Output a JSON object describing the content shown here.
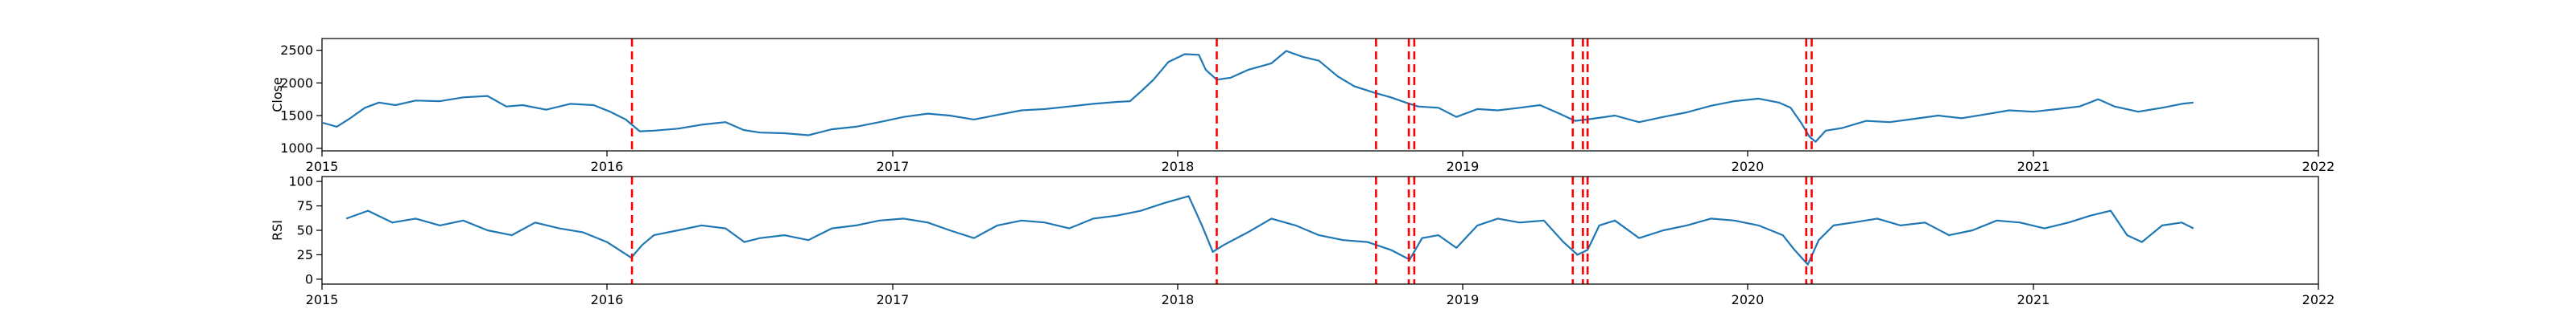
{
  "chart_data": [
    {
      "type": "line",
      "title": "",
      "xlabel": "",
      "ylabel": "Close",
      "xlim": [
        "2015-01-01",
        "2022-01-01"
      ],
      "ylim": [
        960,
        2680
      ],
      "yticks": [
        1000,
        1500,
        2000,
        2500
      ],
      "xticks": [
        "2015",
        "2016",
        "2017",
        "2018",
        "2019",
        "2020",
        "2021",
        "2022"
      ],
      "grid": false,
      "series": [
        {
          "color": "#1f77b4",
          "points": [
            [
              "2015-01-02",
              1390
            ],
            [
              "2015-01-20",
              1330
            ],
            [
              "2015-02-05",
              1450
            ],
            [
              "2015-02-25",
              1620
            ],
            [
              "2015-03-15",
              1700
            ],
            [
              "2015-04-05",
              1660
            ],
            [
              "2015-05-01",
              1730
            ],
            [
              "2015-06-01",
              1720
            ],
            [
              "2015-07-01",
              1780
            ],
            [
              "2015-08-01",
              1800
            ],
            [
              "2015-08-25",
              1640
            ],
            [
              "2015-09-15",
              1660
            ],
            [
              "2015-10-15",
              1590
            ],
            [
              "2015-11-15",
              1680
            ],
            [
              "2015-12-15",
              1660
            ],
            [
              "2016-01-05",
              1560
            ],
            [
              "2016-01-25",
              1440
            ],
            [
              "2016-02-12",
              1260
            ],
            [
              "2016-03-01",
              1270
            ],
            [
              "2016-04-01",
              1300
            ],
            [
              "2016-05-01",
              1360
            ],
            [
              "2016-06-01",
              1400
            ],
            [
              "2016-06-24",
              1280
            ],
            [
              "2016-07-15",
              1240
            ],
            [
              "2016-08-15",
              1230
            ],
            [
              "2016-09-15",
              1200
            ],
            [
              "2016-10-15",
              1290
            ],
            [
              "2016-11-15",
              1330
            ],
            [
              "2016-12-15",
              1400
            ],
            [
              "2017-01-15",
              1480
            ],
            [
              "2017-02-15",
              1530
            ],
            [
              "2017-03-15",
              1500
            ],
            [
              "2017-04-15",
              1440
            ],
            [
              "2017-05-15",
              1510
            ],
            [
              "2017-06-15",
              1580
            ],
            [
              "2017-07-15",
              1600
            ],
            [
              "2017-08-15",
              1640
            ],
            [
              "2017-09-15",
              1680
            ],
            [
              "2017-10-15",
              1710
            ],
            [
              "2017-11-01",
              1720
            ],
            [
              "2017-11-15",
              1870
            ],
            [
              "2017-12-01",
              2050
            ],
            [
              "2017-12-20",
              2320
            ],
            [
              "2018-01-10",
              2440
            ],
            [
              "2018-01-28",
              2430
            ],
            [
              "2018-02-06",
              2200
            ],
            [
              "2018-02-20",
              2050
            ],
            [
              "2018-03-10",
              2080
            ],
            [
              "2018-04-01",
              2200
            ],
            [
              "2018-05-01",
              2300
            ],
            [
              "2018-05-20",
              2490
            ],
            [
              "2018-06-10",
              2400
            ],
            [
              "2018-07-01",
              2340
            ],
            [
              "2018-07-25",
              2100
            ],
            [
              "2018-08-15",
              1950
            ],
            [
              "2018-09-10",
              1850
            ],
            [
              "2018-10-01",
              1780
            ],
            [
              "2018-10-20",
              1700
            ],
            [
              "2018-11-05",
              1640
            ],
            [
              "2018-12-01",
              1620
            ],
            [
              "2018-12-24",
              1480
            ],
            [
              "2019-01-20",
              1600
            ],
            [
              "2019-02-15",
              1580
            ],
            [
              "2019-03-15",
              1620
            ],
            [
              "2019-04-10",
              1660
            ],
            [
              "2019-05-05",
              1530
            ],
            [
              "2019-05-25",
              1420
            ],
            [
              "2019-06-15",
              1450
            ],
            [
              "2019-07-15",
              1500
            ],
            [
              "2019-08-15",
              1400
            ],
            [
              "2019-09-15",
              1480
            ],
            [
              "2019-10-15",
              1550
            ],
            [
              "2019-11-15",
              1650
            ],
            [
              "2019-12-15",
              1720
            ],
            [
              "2020-01-15",
              1760
            ],
            [
              "2020-02-10",
              1700
            ],
            [
              "2020-02-25",
              1620
            ],
            [
              "2020-03-10",
              1380
            ],
            [
              "2020-03-20",
              1180
            ],
            [
              "2020-03-28",
              1100
            ],
            [
              "2020-04-10",
              1270
            ],
            [
              "2020-05-01",
              1310
            ],
            [
              "2020-06-01",
              1420
            ],
            [
              "2020-07-01",
              1400
            ],
            [
              "2020-08-01",
              1450
            ],
            [
              "2020-09-01",
              1500
            ],
            [
              "2020-10-01",
              1460
            ],
            [
              "2020-11-01",
              1520
            ],
            [
              "2020-12-01",
              1580
            ],
            [
              "2021-01-01",
              1560
            ],
            [
              "2021-02-01",
              1600
            ],
            [
              "2021-03-01",
              1640
            ],
            [
              "2021-03-25",
              1750
            ],
            [
              "2021-04-15",
              1640
            ],
            [
              "2021-05-15",
              1560
            ],
            [
              "2021-06-15",
              1620
            ],
            [
              "2021-07-10",
              1680
            ],
            [
              "2021-07-25",
              1700
            ]
          ]
        }
      ],
      "vlines": [
        "2016-02-02",
        "2018-02-20",
        "2018-09-12",
        "2018-10-24",
        "2018-10-31",
        "2019-05-22",
        "2019-06-04",
        "2019-06-10",
        "2020-03-16",
        "2020-03-23"
      ]
    },
    {
      "type": "line",
      "title": "",
      "xlabel": "",
      "ylabel": "RSI",
      "xlim": [
        "2015-01-01",
        "2022-01-01"
      ],
      "ylim": [
        -5,
        105
      ],
      "yticks": [
        0,
        25,
        50,
        75,
        100
      ],
      "xticks": [
        "2015",
        "2016",
        "2017",
        "2018",
        "2019",
        "2020",
        "2021",
        "2022"
      ],
      "grid": false,
      "series": [
        {
          "color": "#1f77b4",
          "points": [
            [
              "2015-02-01",
              62
            ],
            [
              "2015-03-01",
              70
            ],
            [
              "2015-04-01",
              58
            ],
            [
              "2015-05-01",
              62
            ],
            [
              "2015-06-01",
              55
            ],
            [
              "2015-07-01",
              60
            ],
            [
              "2015-08-01",
              50
            ],
            [
              "2015-09-01",
              45
            ],
            [
              "2015-10-01",
              58
            ],
            [
              "2015-11-01",
              52
            ],
            [
              "2015-12-01",
              48
            ],
            [
              "2016-01-01",
              38
            ],
            [
              "2016-02-01",
              22
            ],
            [
              "2016-02-15",
              35
            ],
            [
              "2016-03-01",
              45
            ],
            [
              "2016-04-01",
              50
            ],
            [
              "2016-05-01",
              55
            ],
            [
              "2016-06-01",
              52
            ],
            [
              "2016-06-25",
              38
            ],
            [
              "2016-07-15",
              42
            ],
            [
              "2016-08-15",
              45
            ],
            [
              "2016-09-15",
              40
            ],
            [
              "2016-10-15",
              52
            ],
            [
              "2016-11-15",
              55
            ],
            [
              "2016-12-15",
              60
            ],
            [
              "2017-01-15",
              62
            ],
            [
              "2017-02-15",
              58
            ],
            [
              "2017-03-15",
              50
            ],
            [
              "2017-04-15",
              42
            ],
            [
              "2017-05-15",
              55
            ],
            [
              "2017-06-15",
              60
            ],
            [
              "2017-07-15",
              58
            ],
            [
              "2017-08-15",
              52
            ],
            [
              "2017-09-15",
              62
            ],
            [
              "2017-10-15",
              65
            ],
            [
              "2017-11-15",
              70
            ],
            [
              "2017-12-15",
              78
            ],
            [
              "2018-01-15",
              85
            ],
            [
              "2018-02-01",
              55
            ],
            [
              "2018-02-15",
              28
            ],
            [
              "2018-03-01",
              35
            ],
            [
              "2018-04-01",
              48
            ],
            [
              "2018-05-01",
              62
            ],
            [
              "2018-06-01",
              55
            ],
            [
              "2018-07-01",
              45
            ],
            [
              "2018-08-01",
              40
            ],
            [
              "2018-09-01",
              38
            ],
            [
              "2018-10-01",
              30
            ],
            [
              "2018-10-25",
              20
            ],
            [
              "2018-11-10",
              42
            ],
            [
              "2018-12-01",
              45
            ],
            [
              "2018-12-24",
              32
            ],
            [
              "2019-01-20",
              55
            ],
            [
              "2019-02-15",
              62
            ],
            [
              "2019-03-15",
              58
            ],
            [
              "2019-04-15",
              60
            ],
            [
              "2019-05-10",
              38
            ],
            [
              "2019-05-28",
              25
            ],
            [
              "2019-06-10",
              30
            ],
            [
              "2019-06-25",
              55
            ],
            [
              "2019-07-15",
              60
            ],
            [
              "2019-08-15",
              42
            ],
            [
              "2019-09-15",
              50
            ],
            [
              "2019-10-15",
              55
            ],
            [
              "2019-11-15",
              62
            ],
            [
              "2019-12-15",
              60
            ],
            [
              "2020-01-15",
              55
            ],
            [
              "2020-02-15",
              45
            ],
            [
              "2020-03-01",
              30
            ],
            [
              "2020-03-18",
              15
            ],
            [
              "2020-04-01",
              40
            ],
            [
              "2020-04-20",
              55
            ],
            [
              "2020-05-15",
              58
            ],
            [
              "2020-06-15",
              62
            ],
            [
              "2020-07-15",
              55
            ],
            [
              "2020-08-15",
              58
            ],
            [
              "2020-09-15",
              45
            ],
            [
              "2020-10-15",
              50
            ],
            [
              "2020-11-15",
              60
            ],
            [
              "2020-12-15",
              58
            ],
            [
              "2021-01-15",
              52
            ],
            [
              "2021-02-15",
              58
            ],
            [
              "2021-03-15",
              65
            ],
            [
              "2021-04-10",
              70
            ],
            [
              "2021-05-01",
              45
            ],
            [
              "2021-05-20",
              38
            ],
            [
              "2021-06-15",
              55
            ],
            [
              "2021-07-10",
              58
            ],
            [
              "2021-07-25",
              52
            ]
          ]
        }
      ],
      "vlines": [
        "2016-02-02",
        "2018-02-20",
        "2018-09-12",
        "2018-10-24",
        "2018-10-31",
        "2019-05-22",
        "2019-06-04",
        "2019-06-10",
        "2020-03-16",
        "2020-03-23"
      ]
    }
  ]
}
